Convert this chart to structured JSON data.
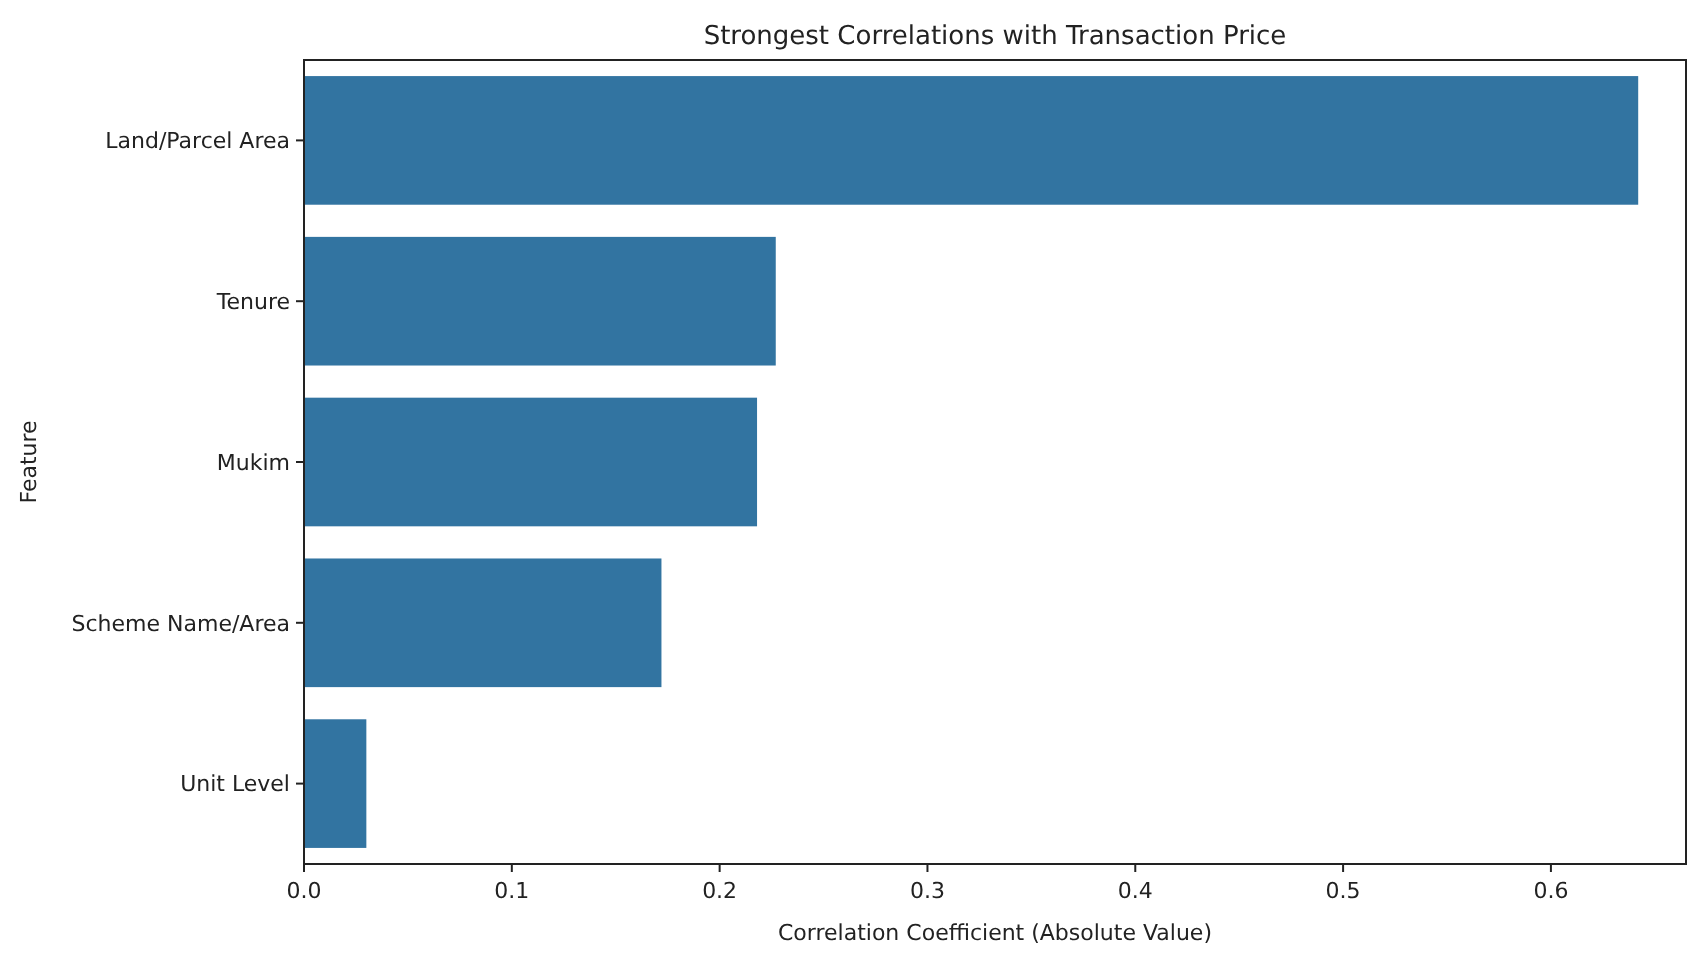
{
  "chart_data": {
    "type": "bar",
    "orientation": "horizontal",
    "title": "Strongest Correlations with Transaction Price",
    "xlabel": "Correlation Coefficient (Absolute Value)",
    "ylabel": "Feature",
    "categories": [
      "Land/Parcel Area",
      "Tenure",
      "Mukim",
      "Scheme Name/Area",
      "Unit Level"
    ],
    "values": [
      0.642,
      0.227,
      0.218,
      0.172,
      0.03
    ],
    "color": "#3274a1",
    "xlim": [
      0,
      0.665
    ],
    "xticks": [
      {
        "value": 0,
        "label": "0.0"
      },
      0.1,
      0.2,
      0.3,
      0.4,
      0.5,
      0.6
    ],
    "grid": false
  }
}
